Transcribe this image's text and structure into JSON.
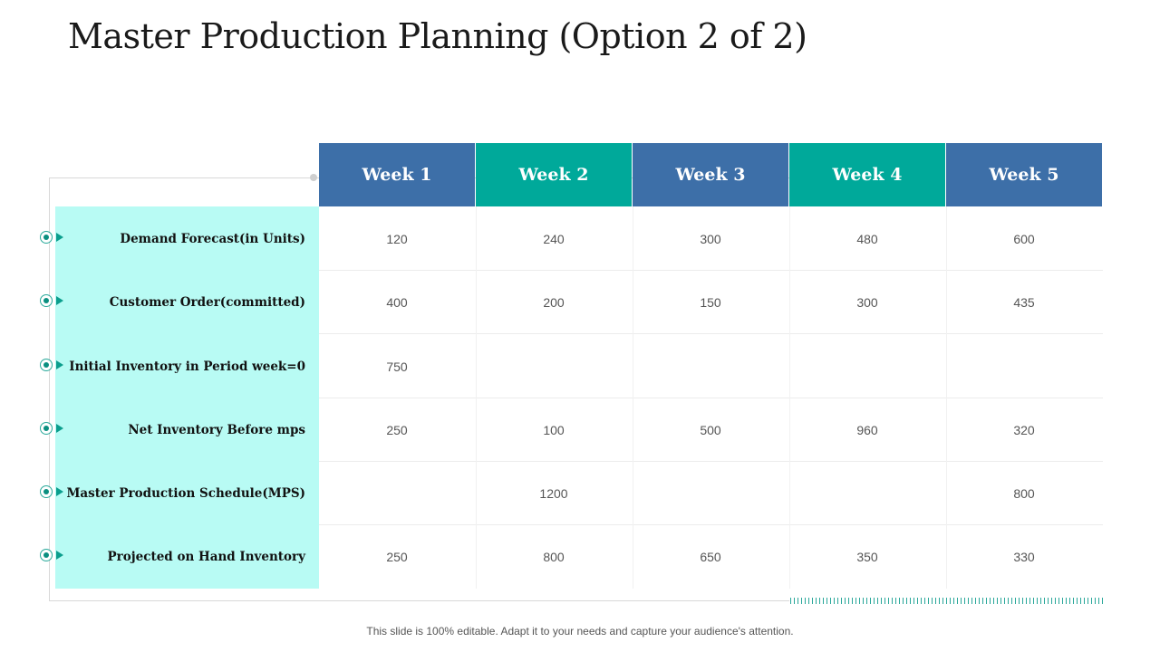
{
  "slide": {
    "title": "Master Production Planning (Option 2 of 2)",
    "footer": "This slide is 100% editable. Adapt it to your needs and capture your audience's attention."
  },
  "colors": {
    "header_blue": "#3d6fa8",
    "header_teal": "#00a99a",
    "label_panel": "#b8fbf4",
    "bullet": "#0b9e8d"
  },
  "icons": {
    "bullet": "circle-arrow-bullet-icon"
  },
  "table": {
    "weeks": [
      "Week 1",
      "Week 2",
      "Week 3",
      "Week 4",
      "Week 5"
    ],
    "rows": [
      {
        "label": "Demand Forecast(in Units)",
        "values": [
          "120",
          "240",
          "300",
          "480",
          "600"
        ]
      },
      {
        "label": "Customer Order(committed)",
        "values": [
          "400",
          "200",
          "150",
          "300",
          "435"
        ]
      },
      {
        "label": "Initial Inventory in Period week=0",
        "values": [
          "750",
          "",
          "",
          "",
          ""
        ]
      },
      {
        "label": "Net Inventory Before mps",
        "values": [
          "250",
          "100",
          "500",
          "960",
          "320"
        ]
      },
      {
        "label": "Master Production Schedule(MPS)",
        "values": [
          "",
          "1200",
          "",
          "",
          "800"
        ]
      },
      {
        "label": "Projected on Hand Inventory",
        "values": [
          "250",
          "800",
          "650",
          "350",
          "330"
        ]
      }
    ]
  }
}
